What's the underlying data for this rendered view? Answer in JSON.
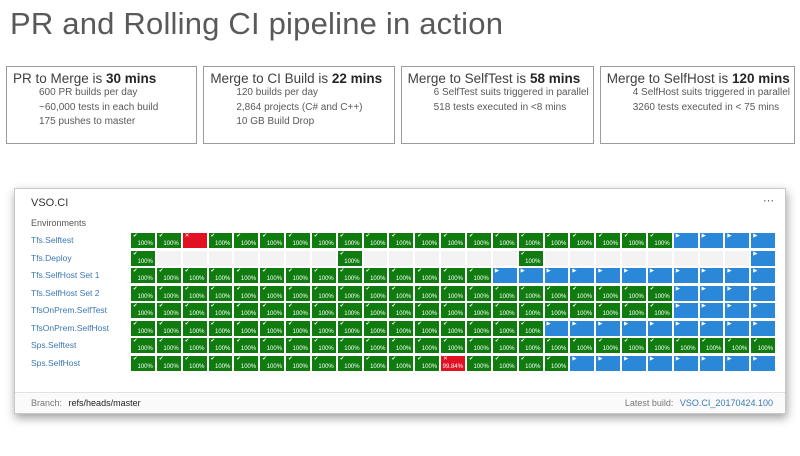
{
  "page_title": "PR and Rolling CI pipeline in action",
  "colors": {
    "passed_green": "#107c10",
    "in_progress_blue": "#2b88d8",
    "failed_red": "#e11123",
    "empty_gray": "#f3f3f3",
    "link_blue": "#3b78b5",
    "title_gray": "#595959"
  },
  "stat_boxes": [
    {
      "title_prefix": "PR to Merge is ",
      "title_value": "30 mins",
      "lines": [
        "600 PR builds per day",
        "~60,000 tests in each build",
        "175 pushes to master"
      ]
    },
    {
      "title_prefix": "Merge to CI Build is ",
      "title_value": "22 mins",
      "lines": [
        "120 builds per day",
        "2,864 projects (C# and C++)",
        "10 GB Build Drop"
      ]
    },
    {
      "title_prefix": "Merge to SelfTest is ",
      "title_value": "58 mins",
      "lines": [
        "6 SelfTest suits triggered in parallel",
        "518 tests executed in <8 mins"
      ]
    },
    {
      "title_prefix": "Merge to SelfHost is ",
      "title_value": "120 mins",
      "lines": [
        "4 SelfHost suits triggered in parallel",
        "3260 tests executed in < 75 mins"
      ]
    }
  ],
  "dashboard": {
    "title": "VSO.CI",
    "more_options": "⋯",
    "environments_label": "Environments",
    "cell_pass_label": "100%",
    "cell_fail_label": "99.84%",
    "check_icon": "✔",
    "fail_icon": "✕",
    "progress_icon": "▶",
    "branch_label": "Branch:",
    "branch_value": "refs/heads/master",
    "latest_build_label": "Latest build:",
    "latest_build_value": "VSO.CI_20170424.100",
    "rows": [
      {
        "label": "Tfs.Selftest",
        "cells": [
          "g",
          "g",
          "r",
          "g",
          "g",
          "g",
          "g",
          "g",
          "g",
          "g",
          "g",
          "g",
          "g",
          "g",
          "g",
          "g",
          "g",
          "g",
          "g",
          "g",
          "g",
          "b",
          "b",
          "b",
          "b"
        ]
      },
      {
        "label": "Tfs.Deploy",
        "cells": [
          "g",
          "e",
          "e",
          "e",
          "e",
          "e",
          "e",
          "e",
          "g",
          "e",
          "e",
          "e",
          "e",
          "e",
          "e",
          "g",
          "e",
          "e",
          "e",
          "e",
          "e",
          "e",
          "e",
          "e",
          "b"
        ]
      },
      {
        "label": "Tfs.SelfHost Set 1",
        "cells": [
          "g",
          "g",
          "g",
          "g",
          "g",
          "g",
          "g",
          "g",
          "g",
          "g",
          "g",
          "g",
          "g",
          "g",
          "b",
          "b",
          "b",
          "b",
          "b",
          "b",
          "b",
          "b",
          "b",
          "b",
          "b"
        ]
      },
      {
        "label": "Tfs.SelfHost Set 2",
        "cells": [
          "g",
          "g",
          "g",
          "g",
          "g",
          "g",
          "g",
          "g",
          "g",
          "g",
          "g",
          "g",
          "g",
          "g",
          "g",
          "g",
          "g",
          "g",
          "g",
          "g",
          "g",
          "b",
          "b",
          "b",
          "b"
        ]
      },
      {
        "label": "TfsOnPrem.SelfTest",
        "cells": [
          "g",
          "g",
          "g",
          "g",
          "g",
          "g",
          "g",
          "g",
          "g",
          "g",
          "g",
          "g",
          "g",
          "g",
          "g",
          "g",
          "g",
          "g",
          "g",
          "g",
          "g",
          "b",
          "b",
          "b",
          "b"
        ]
      },
      {
        "label": "TfsOnPrem.SelfHost",
        "cells": [
          "g",
          "g",
          "g",
          "g",
          "g",
          "g",
          "g",
          "g",
          "g",
          "g",
          "g",
          "g",
          "g",
          "g",
          "g",
          "g",
          "b",
          "b",
          "b",
          "b",
          "b",
          "b",
          "b",
          "b",
          "b"
        ]
      },
      {
        "label": "Sps.Selftest",
        "cells": [
          "g",
          "g",
          "g",
          "g",
          "g",
          "g",
          "g",
          "g",
          "g",
          "g",
          "g",
          "g",
          "g",
          "g",
          "g",
          "g",
          "g",
          "g",
          "g",
          "g",
          "g",
          "g",
          "g",
          "g",
          "g"
        ]
      },
      {
        "label": "Sps.SelfHost",
        "cells": [
          "g",
          "g",
          "g",
          "g",
          "g",
          "g",
          "g",
          "g",
          "g",
          "g",
          "g",
          "g",
          "rp",
          "g",
          "g",
          "g",
          "g",
          "b",
          "b",
          "b",
          "b",
          "b",
          "b",
          "b",
          "b"
        ]
      }
    ]
  }
}
